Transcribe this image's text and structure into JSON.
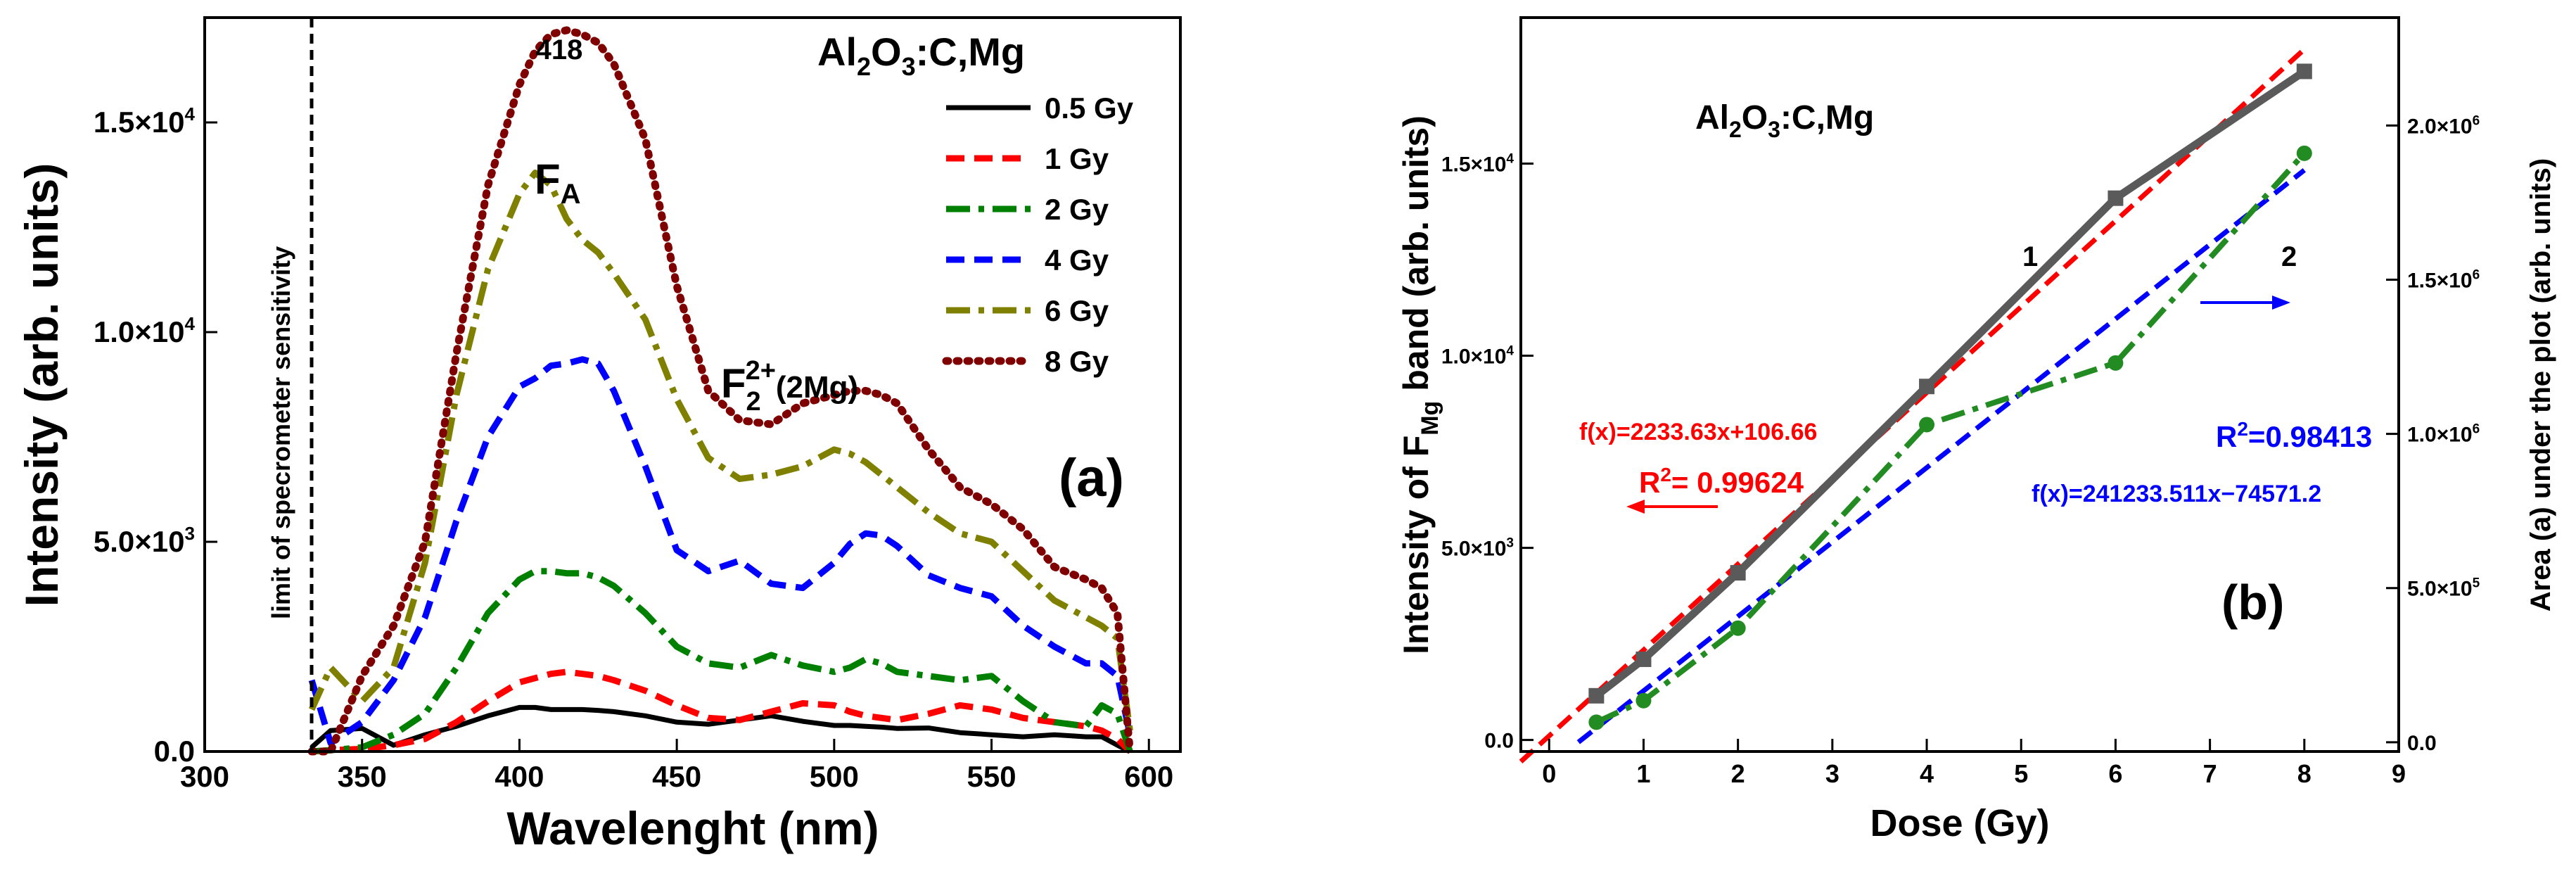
{
  "chart_data": [
    {
      "panel": "(a)",
      "type": "line",
      "title": "Al2O3:C,Mg",
      "title_parts": {
        "base": "Al",
        "sub1": "2",
        "mid": "O",
        "sub2": "3",
        "rest": ":C,Mg"
      },
      "xlabel": "Wavelenght (nm)",
      "ylabel": "Intensity (arb. units)",
      "xlim": [
        300,
        610
      ],
      "ylim": [
        0,
        17500
      ],
      "x_ticks": [
        300,
        350,
        400,
        450,
        500,
        550,
        600
      ],
      "y_ticks": [
        {
          "value": 0,
          "label": "0.0"
        },
        {
          "value": 5000,
          "label": "5.0×10",
          "exp": "3"
        },
        {
          "value": 10000,
          "label": "1.0×10",
          "exp": "4"
        },
        {
          "value": 15000,
          "label": "1.5×10",
          "exp": "4"
        }
      ],
      "vline": {
        "x": 334,
        "label": "limit of specrometer sensitivity"
      },
      "annotations": {
        "peak": "418",
        "fa": {
          "base": "F",
          "sub": "A"
        },
        "f22": {
          "base": "F",
          "sub": "2",
          "sup": "2+",
          "rest": "(2Mg)"
        },
        "panel": "(a)"
      },
      "x": [
        334,
        340,
        350,
        360,
        370,
        380,
        390,
        400,
        405,
        410,
        415,
        420,
        425,
        430,
        440,
        450,
        460,
        470,
        480,
        490,
        500,
        505,
        510,
        515,
        520,
        530,
        540,
        550,
        560,
        570,
        580,
        585,
        590,
        594
      ],
      "series": [
        {
          "name": "0.5 Gy",
          "color": "#000000",
          "dash": "solid",
          "values": [
            100,
            500,
            550,
            150,
            400,
            600,
            850,
            1050,
            1050,
            1000,
            1000,
            1000,
            980,
            950,
            850,
            700,
            650,
            750,
            850,
            720,
            620,
            620,
            600,
            580,
            550,
            560,
            450,
            400,
            350,
            400,
            350,
            350,
            150,
            0
          ]
        },
        {
          "name": "1 Gy",
          "color": "#ff0000",
          "dash": "dash",
          "values": [
            0,
            30,
            60,
            150,
            300,
            700,
            1200,
            1650,
            1750,
            1850,
            1900,
            1850,
            1800,
            1700,
            1450,
            1100,
            800,
            750,
            950,
            1150,
            1100,
            950,
            850,
            800,
            750,
            900,
            1100,
            1000,
            800,
            700,
            600,
            500,
            300,
            0
          ]
        },
        {
          "name": "2 Gy",
          "color": "#008000",
          "dash": "dashdot",
          "values": [
            0,
            30,
            100,
            400,
            900,
            2000,
            3300,
            4100,
            4300,
            4300,
            4250,
            4250,
            4150,
            3950,
            3300,
            2500,
            2100,
            2000,
            2300,
            2050,
            1900,
            2000,
            2200,
            2100,
            1900,
            1800,
            1700,
            1800,
            1200,
            700,
            600,
            1100,
            900,
            0
          ]
        },
        {
          "name": "4 Gy",
          "color": "#0000ff",
          "dash": "dash",
          "values": [
            1700,
            200,
            700,
            1700,
            3200,
            5500,
            7500,
            8700,
            8900,
            9200,
            9250,
            9350,
            9250,
            8600,
            6800,
            4800,
            4300,
            4550,
            4000,
            3900,
            4500,
            4950,
            5200,
            5150,
            4900,
            4200,
            3900,
            3700,
            3000,
            2500,
            2100,
            2100,
            1800,
            400
          ]
        },
        {
          "name": "6 Gy",
          "color": "#808000",
          "dash": "dashdot",
          "values": [
            1000,
            2000,
            1200,
            2000,
            4500,
            8500,
            11500,
            13300,
            13800,
            13500,
            12700,
            12200,
            11900,
            11400,
            10300,
            8400,
            7000,
            6500,
            6600,
            6800,
            7200,
            7100,
            6900,
            6600,
            6300,
            5700,
            5200,
            5000,
            4300,
            3600,
            3200,
            3000,
            2700,
            500
          ]
        },
        {
          "name": "8 Gy",
          "color": "#7f0000",
          "dash": "dot",
          "values": [
            0,
            0,
            1800,
            3000,
            5000,
            9500,
            13500,
            15900,
            16700,
            17100,
            17200,
            17100,
            16900,
            16400,
            14600,
            11100,
            8600,
            7900,
            7800,
            8300,
            8500,
            8600,
            8600,
            8500,
            8300,
            7200,
            6300,
            5900,
            5300,
            4400,
            4100,
            3900,
            3300,
            0
          ]
        }
      ]
    },
    {
      "panel": "(b)",
      "type": "scatter",
      "title": "Al2O3:C,Mg",
      "title_parts": {
        "base": "Al",
        "sub1": "2",
        "mid": "O",
        "sub2": "3",
        "rest": ":C,Mg"
      },
      "xlabel": "Dose (Gy)",
      "ylabel_left": {
        "pre": "Intensity of F",
        "sub": "Mg",
        "post": " band (arb. units)"
      },
      "ylabel_right": "Area (a) under the plot (arb. units)",
      "xlim": [
        -0.3,
        9
      ],
      "ylim_left": [
        -300,
        18800
      ],
      "ylim_right": [
        -30000,
        2350000
      ],
      "x_ticks": [
        0,
        1,
        2,
        3,
        4,
        5,
        6,
        7,
        8,
        9
      ],
      "y_ticks_left": [
        {
          "value": 0,
          "label": "0.0"
        },
        {
          "value": 5000,
          "label": "5.0×10",
          "exp": "3"
        },
        {
          "value": 10000,
          "label": "1.0×10",
          "exp": "4"
        },
        {
          "value": 15000,
          "label": "1.5×10",
          "exp": "4"
        }
      ],
      "y_ticks_right": [
        {
          "value": 0,
          "label": "0.0"
        },
        {
          "value": 500000,
          "label": "5.0×10",
          "exp": "5"
        },
        {
          "value": 1000000,
          "label": "1.0×10",
          "exp": "6"
        },
        {
          "value": 1500000,
          "label": "1.5×10",
          "exp": "6"
        },
        {
          "value": 2000000,
          "label": "2.0×10",
          "exp": "6"
        }
      ],
      "series": [
        {
          "name": "1",
          "color": "#5a5a5a",
          "marker": "square",
          "axis": "left",
          "x": [
            0.5,
            1,
            2,
            4,
            6,
            8
          ],
          "values": [
            1150,
            2100,
            4350,
            9200,
            14100,
            17400
          ]
        },
        {
          "name": "2",
          "color": "#228b22",
          "marker": "circle",
          "axis": "right",
          "x": [
            0.5,
            1,
            2,
            4,
            6,
            8
          ],
          "values": [
            65000,
            135000,
            370000,
            1030000,
            1230000,
            1910000
          ]
        }
      ],
      "fits": [
        {
          "label": "f(x)=2233.63x+106.66",
          "r2_label": "R",
          "r2_sup": "2",
          "r2_value": "= 0.99624",
          "slope": 2233.63,
          "intercept": 106.66,
          "axis": "left",
          "color": "#ff0000"
        },
        {
          "label": "f(x)=241233.511x−74571.2",
          "r2_label": "R",
          "r2_sup": "2",
          "r2_value": "=0.98413",
          "slope": 241233.511,
          "intercept": -74571.2,
          "axis": "right",
          "color": "#0000ff"
        }
      ],
      "curve_labels": [
        "1",
        "2"
      ],
      "panel_label": "(b)"
    }
  ]
}
